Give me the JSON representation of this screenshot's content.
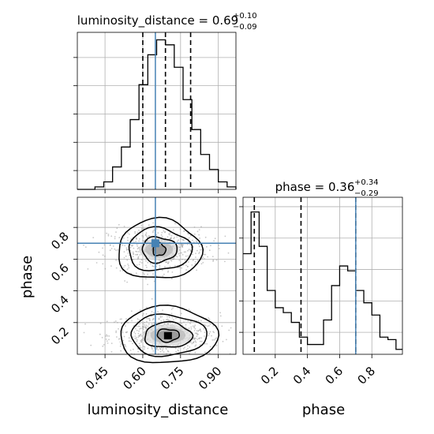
{
  "colors": {
    "truth": "#4682b4",
    "hist": "#000000",
    "quantile": "#000000",
    "grid": "#b0b0b0",
    "contour": "#000000",
    "scatter": "#9a9a9a"
  },
  "chart_data": {
    "type": "corner",
    "parameters": [
      "luminosity_distance",
      "phase"
    ],
    "axis_labels": {
      "x": [
        "luminosity_distance",
        "phase"
      ],
      "y": [
        "phase"
      ]
    },
    "titles": {
      "luminosity_distance": {
        "name": "luminosity_distance",
        "median": "0.69",
        "plus": "+0.10",
        "minus": "−0.09"
      },
      "phase": {
        "name": "phase",
        "median": "0.36",
        "plus": "+0.34",
        "minus": "−0.29"
      }
    },
    "truths": {
      "luminosity_distance": 0.65,
      "phase": 0.7
    },
    "quantiles": {
      "luminosity_distance": [
        0.6,
        0.69,
        0.79
      ],
      "phase": [
        0.07,
        0.36,
        0.7
      ]
    },
    "ranges": {
      "luminosity_distance": [
        0.34,
        0.97
      ],
      "phase": [
        0.0,
        0.99
      ]
    },
    "ticks": {
      "luminosity_distance": {
        "values": [
          0.45,
          0.6,
          0.75,
          0.9
        ],
        "labels": [
          "0.45",
          "0.60",
          "0.75",
          "0.90"
        ]
      },
      "phase_x": {
        "values": [
          0.2,
          0.4,
          0.6,
          0.8
        ],
        "labels": [
          "0.2",
          "0.4",
          "0.6",
          "0.8"
        ]
      },
      "phase_y": {
        "values": [
          0.2,
          0.4,
          0.6,
          0.8
        ],
        "labels": [
          "0.2",
          "0.4",
          "0.6",
          "0.8"
        ]
      }
    },
    "hist_luminosity_distance": {
      "x": [
        0.34,
        0.375,
        0.41,
        0.445,
        0.48,
        0.515,
        0.55,
        0.585,
        0.62,
        0.655,
        0.69,
        0.725,
        0.76,
        0.795,
        0.83,
        0.865,
        0.9,
        0.935
      ],
      "bin_width": 0.035,
      "counts": [
        0,
        0,
        1,
        3,
        9,
        17,
        28,
        42,
        54,
        60,
        58,
        49,
        36,
        24,
        14,
        8,
        3,
        1
      ]
    },
    "hist_phase": {
      "x": [
        0.0,
        0.05,
        0.1,
        0.15,
        0.2,
        0.25,
        0.3,
        0.35,
        0.4,
        0.45,
        0.5,
        0.55,
        0.6,
        0.65,
        0.7,
        0.75,
        0.8,
        0.85,
        0.9,
        0.95
      ],
      "bin_width": 0.05,
      "counts": [
        41,
        58,
        44,
        26,
        19,
        17,
        13,
        7,
        4,
        4,
        14,
        28,
        36,
        34,
        26,
        21,
        16,
        7,
        6,
        2
      ]
    },
    "grid": true,
    "ylim_ld_hist": [
      0,
      63
    ],
    "ylim_phase_hist": [
      0,
      64
    ]
  }
}
